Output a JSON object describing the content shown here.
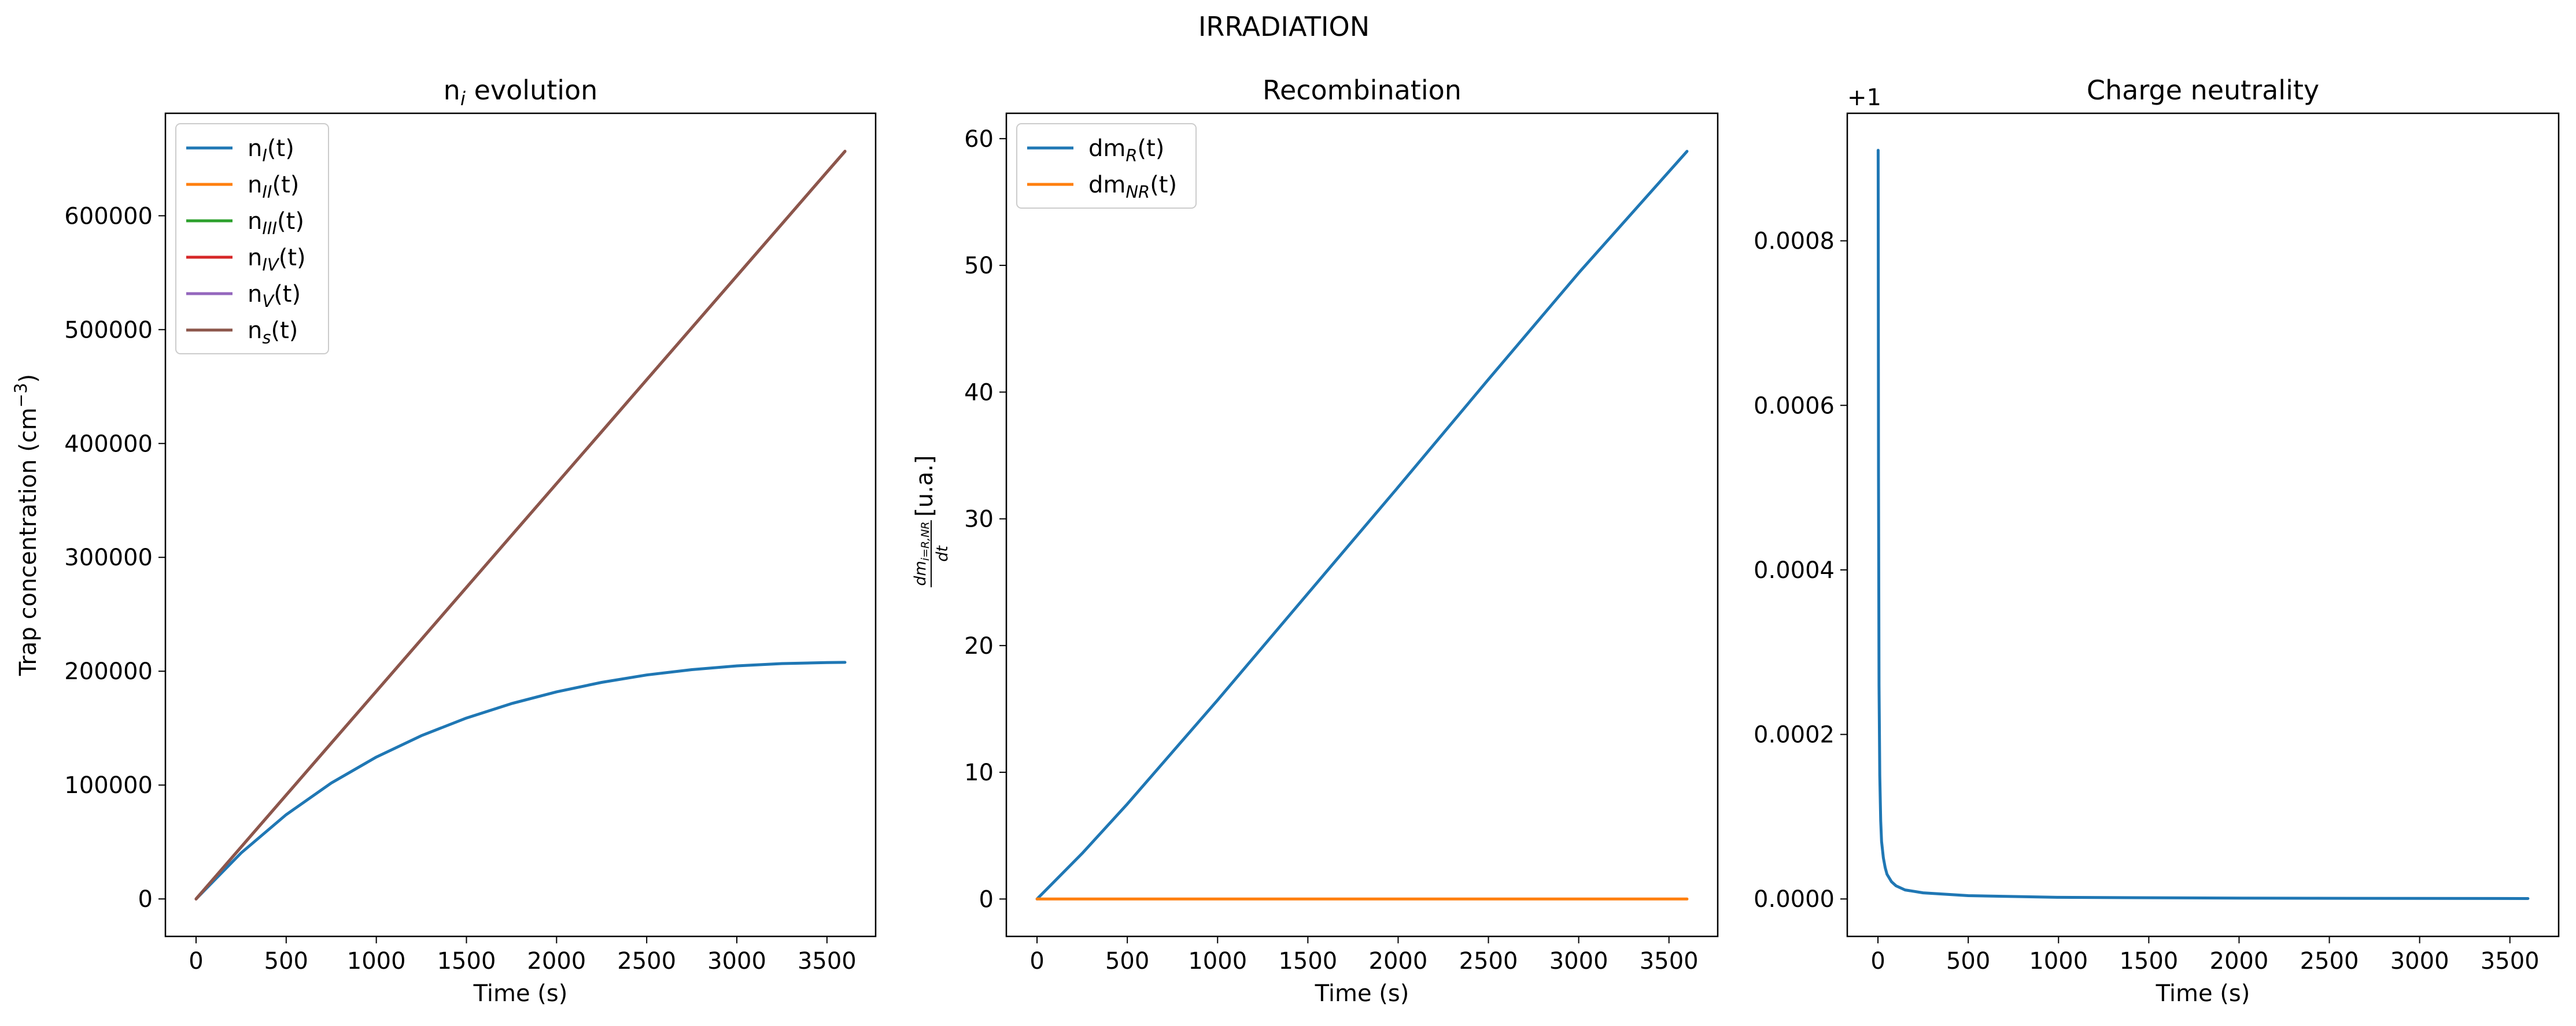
{
  "figure": {
    "suptitle": "IRRADIATION"
  },
  "chart_data": [
    {
      "type": "line",
      "title": "n",
      "title_sub": "i",
      "title_rest": " evolution",
      "xlabel": "Time (s)",
      "ylabel": "Trap concentration (cm",
      "ylabel_sup": "−3",
      "ylabel_end": ")",
      "xlim": [
        -170,
        3770
      ],
      "ylim": [
        -32900,
        690000
      ],
      "xticks": [
        0,
        500,
        1000,
        1500,
        2000,
        2500,
        3000,
        3500
      ],
      "xtick_labels": [
        "0",
        "500",
        "1000",
        "1500",
        "2000",
        "2500",
        "3000",
        "3500"
      ],
      "yticks": [
        0,
        100000,
        200000,
        300000,
        400000,
        500000,
        600000
      ],
      "ytick_labels": [
        "0",
        "100000",
        "200000",
        "300000",
        "400000",
        "500000",
        "600000"
      ],
      "legend_position": "upper-left",
      "grid": false,
      "x": [
        0,
        250,
        500,
        750,
        1000,
        1250,
        1500,
        1750,
        2000,
        2250,
        2500,
        2750,
        3000,
        3250,
        3500,
        3600
      ],
      "series": [
        {
          "name_main": "n",
          "name_sub": "I",
          "name_end": "(t)",
          "color": "#1f77b4",
          "values": [
            0,
            40400,
            74000,
            101800,
            124600,
            143400,
            158900,
            171600,
            181900,
            190200,
            196700,
            201400,
            204700,
            206700,
            207600,
            207800
          ]
        },
        {
          "name_main": "n",
          "name_sub": "II",
          "name_end": "(t)",
          "color": "#ff7f0e",
          "values": [
            0,
            45600,
            91200,
            136800,
            182400,
            228000,
            273600,
            319200,
            364800,
            410400,
            456000,
            501600,
            547200,
            592800,
            638400,
            656600
          ]
        },
        {
          "name_main": "n",
          "name_sub": "III",
          "name_end": "(t)",
          "color": "#2ca02c",
          "values": [
            0,
            45600,
            91200,
            136800,
            182400,
            228000,
            273600,
            319200,
            364800,
            410400,
            456000,
            501600,
            547200,
            592800,
            638400,
            656600
          ]
        },
        {
          "name_main": "n",
          "name_sub": "IV",
          "name_end": "(t)",
          "color": "#d62728",
          "values": [
            0,
            45600,
            91200,
            136800,
            182400,
            228000,
            273600,
            319200,
            364800,
            410400,
            456000,
            501600,
            547200,
            592800,
            638400,
            656600
          ]
        },
        {
          "name_main": "n",
          "name_sub": "V",
          "name_end": "(t)",
          "color": "#9467bd",
          "values": [
            0,
            45600,
            91200,
            136800,
            182400,
            228000,
            273600,
            319200,
            364800,
            410400,
            456000,
            501600,
            547200,
            592800,
            638400,
            656600
          ]
        },
        {
          "name_main": "n",
          "name_sub": "s",
          "name_end": "(t)",
          "color": "#8c564b",
          "values": [
            0,
            45600,
            91200,
            136800,
            182400,
            228000,
            273600,
            319200,
            364800,
            410400,
            456000,
            501600,
            547200,
            592800,
            638400,
            656600
          ]
        }
      ]
    },
    {
      "type": "line",
      "title": "Recombination",
      "xlabel": "Time (s)",
      "ylabel_num": "dm",
      "ylabel_num_sub": "i=R,NR",
      "ylabel_den": "dt",
      "ylabel_rest": " [u.a.]",
      "xlim": [
        -170,
        3770
      ],
      "ylim": [
        -2.95,
        62.0
      ],
      "xticks": [
        0,
        500,
        1000,
        1500,
        2000,
        2500,
        3000,
        3500
      ],
      "xtick_labels": [
        "0",
        "500",
        "1000",
        "1500",
        "2000",
        "2500",
        "3000",
        "3500"
      ],
      "yticks": [
        0,
        10,
        20,
        30,
        40,
        50,
        60
      ],
      "ytick_labels": [
        "0",
        "10",
        "20",
        "30",
        "40",
        "50",
        "60"
      ],
      "legend_position": "upper-left",
      "grid": false,
      "x": [
        0,
        250,
        500,
        750,
        1000,
        1500,
        2000,
        2500,
        3000,
        3600
      ],
      "series": [
        {
          "name_main": "dm",
          "name_sub": "R",
          "name_end": "(t)",
          "color": "#1f77b4",
          "values": [
            0,
            3.6,
            7.5,
            11.6,
            15.7,
            24.1,
            32.5,
            41.0,
            49.4,
            59.0
          ]
        },
        {
          "name_main": "dm",
          "name_sub": "NR",
          "name_end": "(t)",
          "color": "#ff7f0e",
          "values": [
            0,
            0,
            0,
            0,
            0,
            0,
            0,
            0,
            0,
            0
          ]
        }
      ]
    },
    {
      "type": "line",
      "title": "Charge neutrality",
      "xlabel": "Time (s)",
      "ylabel": "",
      "offset_text": "+1",
      "xlim": [
        -170,
        3770
      ],
      "ylim": [
        -4.55e-05,
        0.000955
      ],
      "xticks": [
        0,
        500,
        1000,
        1500,
        2000,
        2500,
        3000,
        3500
      ],
      "xtick_labels": [
        "0",
        "500",
        "1000",
        "1500",
        "2000",
        "2500",
        "3000",
        "3500"
      ],
      "yticks": [
        0,
        0.0002,
        0.0004,
        0.0006,
        0.0008
      ],
      "ytick_labels": [
        "0.0000",
        "0.0002",
        "0.0004",
        "0.0006",
        "0.0008"
      ],
      "grid": false,
      "x": [
        1,
        3,
        6,
        10,
        15,
        20,
        30,
        40,
        50,
        75,
        100,
        150,
        250,
        500,
        1000,
        2000,
        3600
      ],
      "series": [
        {
          "color": "#1f77b4",
          "values": [
            0.00091,
            0.00052,
            0.00026,
            0.00015,
            9.5e-05,
            7e-05,
            5e-05,
            3.8e-05,
            3e-05,
            2.1e-05,
            1.6e-05,
            1.1e-05,
            7.5e-06,
            4e-06,
            2e-06,
            1e-06,
            5e-07
          ]
        }
      ]
    }
  ]
}
